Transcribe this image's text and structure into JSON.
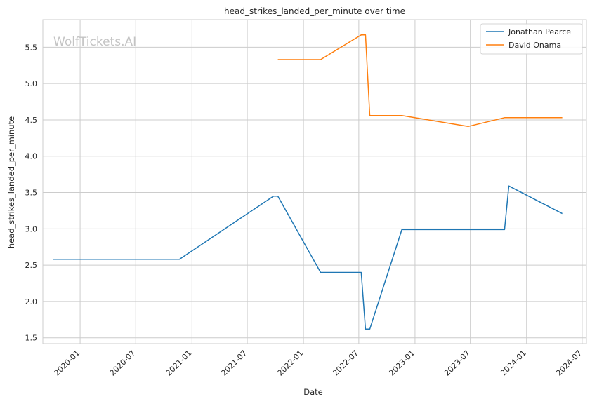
{
  "watermark": "WolfTickets.AI",
  "chart_data": {
    "type": "line",
    "title": "head_strikes_landed_per_minute over time",
    "xlabel": "Date",
    "ylabel": "head_strikes_landed_per_minute",
    "x_axis_type": "date",
    "xlim": [
      "2019-09-01",
      "2024-07-15"
    ],
    "ylim": [
      1.42,
      5.88
    ],
    "x_ticks": [
      "2020-01",
      "2020-07",
      "2021-01",
      "2021-07",
      "2022-01",
      "2022-07",
      "2023-01",
      "2023-07",
      "2024-01",
      "2024-07"
    ],
    "y_ticks": [
      1.5,
      2.0,
      2.5,
      3.0,
      3.5,
      4.0,
      4.5,
      5.0,
      5.5
    ],
    "y_tick_labels": [
      "1.5",
      "2.0",
      "2.5",
      "3.0",
      "3.5",
      "4.0",
      "4.5",
      "5.0",
      "5.5"
    ],
    "grid": true,
    "legend_position": "top-right",
    "series": [
      {
        "name": "Jonathan Pearce",
        "color": "#1f77b4",
        "points": [
          {
            "x": "2019-10-05",
            "y": 2.58
          },
          {
            "x": "2020-11-21",
            "y": 2.58
          },
          {
            "x": "2021-09-25",
            "y": 3.45
          },
          {
            "x": "2021-10-09",
            "y": 3.45
          },
          {
            "x": "2022-02-26",
            "y": 2.4
          },
          {
            "x": "2022-07-09",
            "y": 2.4
          },
          {
            "x": "2022-07-23",
            "y": 1.62
          },
          {
            "x": "2022-08-06",
            "y": 1.62
          },
          {
            "x": "2022-11-19",
            "y": 2.99
          },
          {
            "x": "2023-10-21",
            "y": 2.99
          },
          {
            "x": "2023-11-04",
            "y": 3.59
          },
          {
            "x": "2024-04-27",
            "y": 3.21
          }
        ]
      },
      {
        "name": "David Onama",
        "color": "#ff7f0e",
        "points": [
          {
            "x": "2021-10-09",
            "y": 5.33
          },
          {
            "x": "2022-02-26",
            "y": 5.33
          },
          {
            "x": "2022-07-09",
            "y": 5.67
          },
          {
            "x": "2022-07-23",
            "y": 5.67
          },
          {
            "x": "2022-08-06",
            "y": 4.56
          },
          {
            "x": "2022-11-19",
            "y": 4.56
          },
          {
            "x": "2023-06-24",
            "y": 4.41
          },
          {
            "x": "2023-10-21",
            "y": 4.53
          },
          {
            "x": "2024-04-27",
            "y": 4.53
          }
        ]
      }
    ]
  }
}
